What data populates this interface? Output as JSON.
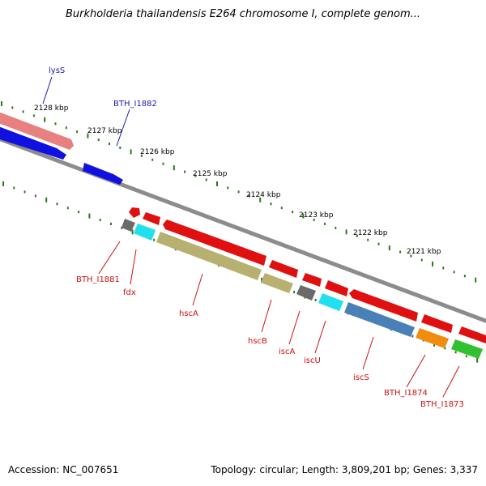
{
  "title": "Burkholderia thailandensis E264 chromosome I, complete genom...",
  "footer": {
    "accession": "Accession: NC_007651",
    "topology": "Topology: circular; Length: 3,809,201 bp; Genes: 3,337"
  },
  "ruler": {
    "labels": [
      "2128 kbp",
      "2127 kbp",
      "2126 kbp",
      "2125 kbp",
      "2124 kbp",
      "2123 kbp",
      "2122 kbp",
      "2121 kbp"
    ]
  },
  "genes_forward": [
    {
      "name": "lysS",
      "label_color": "blue"
    },
    {
      "name": "BTH_I1882",
      "label_color": "blue"
    }
  ],
  "genes_reverse": [
    {
      "name": "BTH_I1881"
    },
    {
      "name": "fdx"
    },
    {
      "name": "hscA"
    },
    {
      "name": "hscB"
    },
    {
      "name": "iscA"
    },
    {
      "name": "iscU"
    },
    {
      "name": "iscS"
    },
    {
      "name": "BTH_I1874"
    },
    {
      "name": "BTH_I1873"
    }
  ],
  "colors": {
    "forward_cds": "#1010e0",
    "rna": "#e88080",
    "reverse_gene": "#e01010",
    "backbone": "#8c8c8c",
    "tick": "#2a7a1a",
    "hscA_cds": "#b8b070",
    "hscB_cds": "#b8b070",
    "fdx_cds": "#20e0f0",
    "iscU_cds": "#20e0f0",
    "iscS_cds": "#4a80b8",
    "BTH_I1874_cds": "#f08c10",
    "BTH_I1873_cds": "#30c030",
    "BTH_I1881_cds": "#6a6a6a",
    "iscA_cds": "#6a6a6a"
  }
}
